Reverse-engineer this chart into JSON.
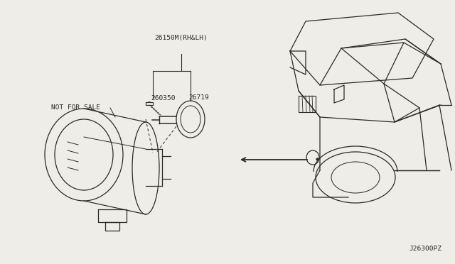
{
  "bg_color": "#eeede8",
  "line_color": "#2a2a2a",
  "text_color": "#2a2a2a",
  "part_label_main": "26150M(RH&LH)",
  "part_label_screw": "260350",
  "part_label_bulb": "26719",
  "part_label_nfs": "NOT FOR SALE",
  "part_code": "J26300PZ"
}
